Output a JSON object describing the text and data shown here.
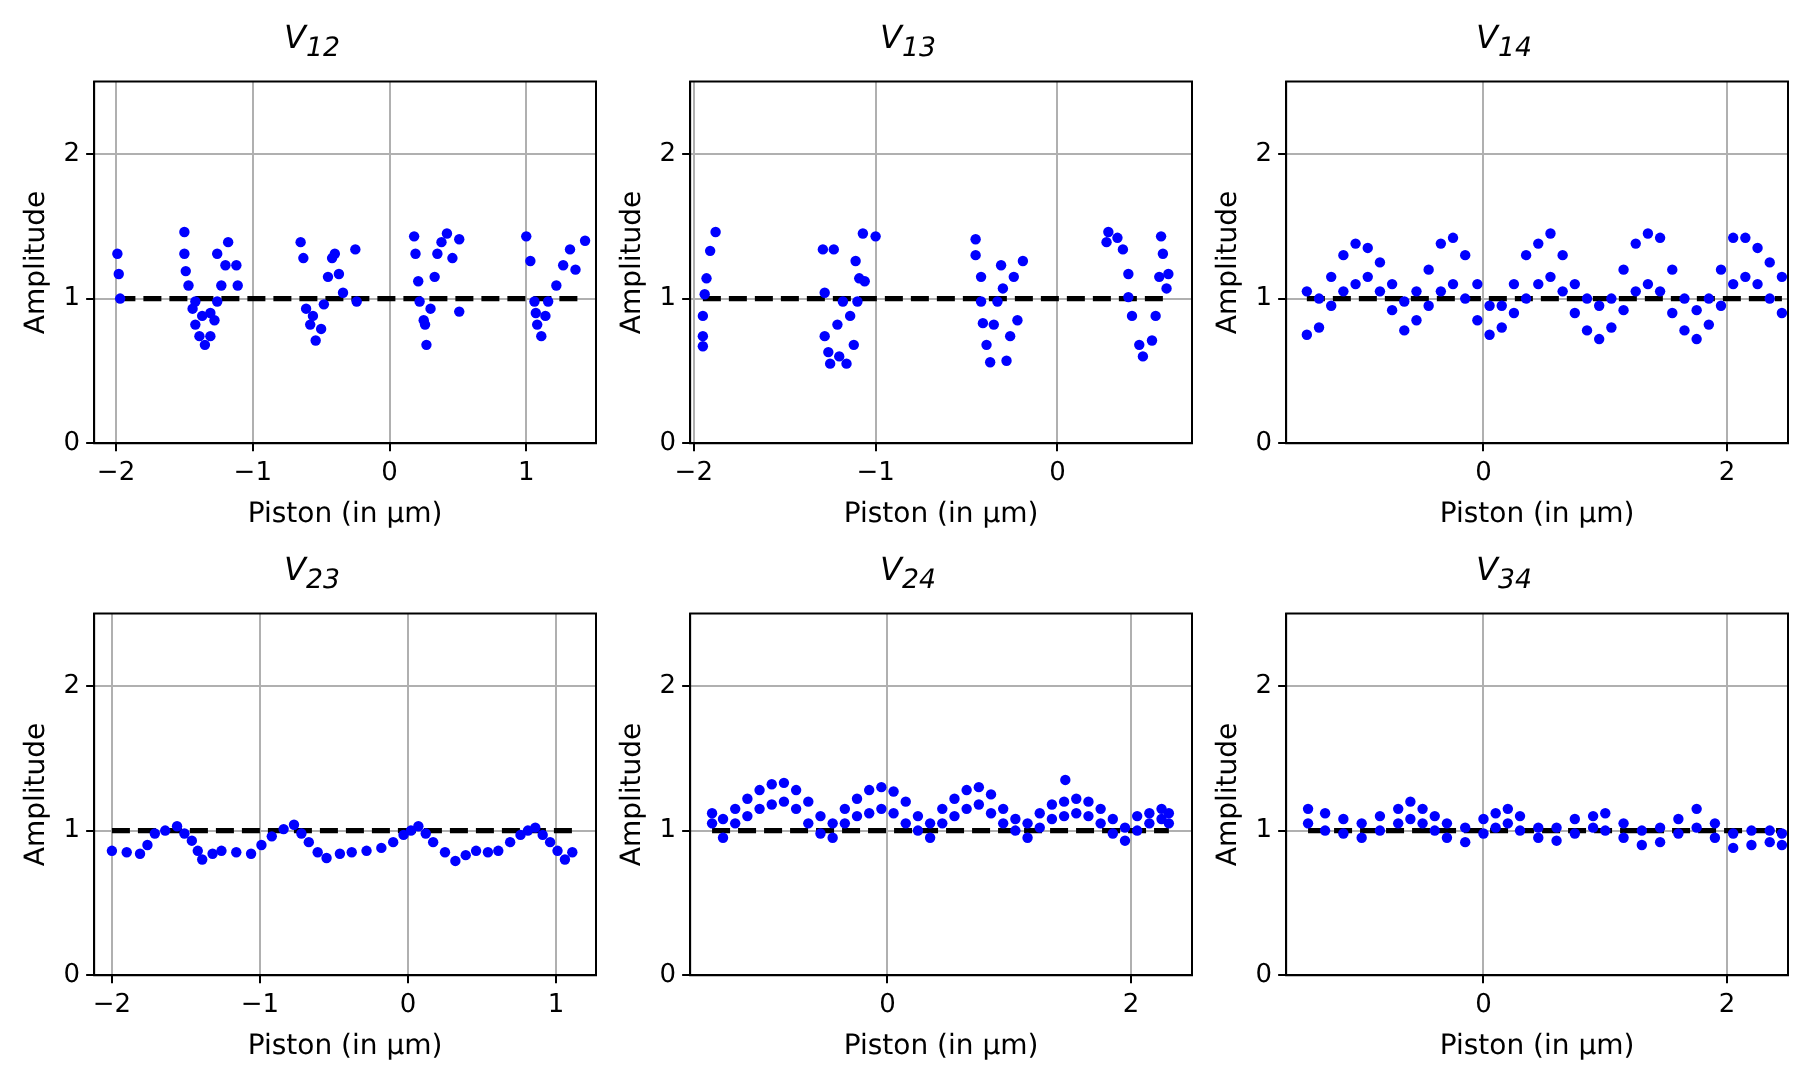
{
  "chart_data": [
    {
      "type": "scatter",
      "title": "V$_{12}$",
      "xlabel": "Piston (in μm)",
      "ylabel": "Amplitude",
      "xlim": [
        -2.16,
        1.51
      ],
      "ylim": [
        0,
        2.5
      ],
      "xticks": [
        -2,
        -1,
        0,
        1
      ],
      "yticks": [
        0,
        1,
        2
      ],
      "grid": true,
      "marker": "circle",
      "ref_lines": [
        {
          "axis": "y",
          "value": 1,
          "color": "#000000",
          "line_style": "dashed"
        }
      ],
      "series": [
        {
          "color": "#0000ff",
          "x": [
            -1.99,
            -1.98,
            -1.97,
            -1.5,
            -1.5,
            -1.49,
            -1.47,
            -1.44,
            -1.42,
            -1.39,
            -1.35,
            -1.31,
            -1.28,
            -1.26,
            -1.23,
            -1.2,
            -1.18,
            -1.12,
            -1.11,
            -1.37,
            -1.31,
            -1.42,
            -1.26,
            -0.65,
            -0.63,
            -0.61,
            -0.58,
            -0.54,
            -0.5,
            -0.48,
            -0.45,
            -0.42,
            -0.4,
            -0.37,
            -0.34,
            -0.25,
            -0.24,
            -0.56,
            0.18,
            0.19,
            0.21,
            0.22,
            0.25,
            0.27,
            0.3,
            0.33,
            0.35,
            0.38,
            0.42,
            0.46,
            0.51,
            0.51,
            0.26,
            1.0,
            1.03,
            1.06,
            1.08,
            1.11,
            1.14,
            1.16,
            1.22,
            1.27,
            1.32,
            1.36,
            1.43,
            1.07
          ],
          "values": [
            1.31,
            1.17,
            1.0,
            1.46,
            1.31,
            1.19,
            1.09,
            0.93,
            0.82,
            0.74,
            0.68,
            0.74,
            0.85,
            0.98,
            1.09,
            1.23,
            1.39,
            1.23,
            1.09,
            0.88,
            0.9,
            0.98,
            1.31,
            1.39,
            1.28,
            0.93,
            0.82,
            0.71,
            0.79,
            0.96,
            1.15,
            1.28,
            1.31,
            1.17,
            1.04,
            1.34,
            0.98,
            0.88,
            1.43,
            1.31,
            1.12,
            0.98,
            0.85,
            0.68,
            0.93,
            1.15,
            1.31,
            1.39,
            1.45,
            1.28,
            1.41,
            0.91,
            0.82,
            1.43,
            1.26,
            0.98,
            0.82,
            0.74,
            0.88,
            0.98,
            1.09,
            1.23,
            1.34,
            1.2,
            1.4,
            0.9
          ]
        }
      ]
    },
    {
      "type": "scatter",
      "title": "V$_{13}$",
      "xlabel": "Piston (in μm)",
      "ylabel": "Amplitude",
      "xlim": [
        -2.02,
        0.74
      ],
      "ylim": [
        0,
        2.5
      ],
      "xticks": [
        -2,
        -1,
        0
      ],
      "yticks": [
        0,
        1,
        2
      ],
      "grid": true,
      "marker": "circle",
      "ref_lines": [
        {
          "axis": "y",
          "value": 1,
          "color": "#000000",
          "line_style": "dashed"
        }
      ],
      "series": [
        {
          "color": "#0000ff",
          "x": [
            -1.88,
            -1.91,
            -1.93,
            -1.94,
            -1.95,
            -1.95,
            -1.95,
            -1.29,
            -1.28,
            -1.28,
            -1.26,
            -1.25,
            -1.23,
            -1.21,
            -1.2,
            -1.18,
            -1.16,
            -1.14,
            -1.12,
            -1.11,
            -1.09,
            -1.07,
            -1.06,
            -1.0,
            -1.1,
            -0.45,
            -0.45,
            -0.42,
            -0.42,
            -0.41,
            -0.39,
            -0.37,
            -0.35,
            -0.33,
            -0.31,
            -0.3,
            -0.28,
            -0.26,
            -0.24,
            -0.22,
            -0.19,
            0.28,
            0.27,
            0.33,
            0.36,
            0.39,
            0.39,
            0.41,
            0.45,
            0.47,
            0.52,
            0.54,
            0.56,
            0.57,
            0.58,
            0.6,
            0.61
          ],
          "values": [
            1.46,
            1.33,
            1.14,
            1.03,
            0.88,
            0.74,
            0.67,
            1.34,
            1.04,
            0.74,
            0.63,
            0.55,
            1.34,
            0.82,
            0.6,
            0.98,
            0.55,
            0.88,
            0.68,
            1.26,
            1.14,
            1.45,
            1.12,
            1.43,
            0.98,
            1.41,
            1.3,
            1.15,
            0.98,
            0.83,
            0.68,
            0.56,
            0.82,
            0.98,
            1.23,
            1.07,
            0.57,
            0.74,
            1.15,
            0.85,
            1.26,
            1.46,
            1.39,
            1.42,
            1.34,
            1.17,
            1.01,
            0.88,
            0.68,
            0.6,
            0.71,
            0.88,
            1.15,
            1.43,
            1.31,
            1.07,
            1.17
          ]
        }
      ]
    },
    {
      "type": "scatter",
      "title": "V$_{14}$",
      "xlabel": "Piston (in μm)",
      "ylabel": "Amplitude",
      "xlim": [
        -1.62,
        2.5
      ],
      "ylim": [
        0,
        2.5
      ],
      "xticks": [
        0,
        2
      ],
      "yticks": [
        0,
        1,
        2
      ],
      "grid": true,
      "marker": "circle",
      "ref_lines": [
        {
          "axis": "y",
          "value": 1,
          "color": "#000000",
          "line_style": "dashed"
        }
      ],
      "series": [
        {
          "color": "#0000ff",
          "x": [
            -1.45,
            -1.45,
            -1.35,
            -1.35,
            -1.25,
            -1.25,
            -1.15,
            -1.15,
            -1.05,
            -1.05,
            -0.95,
            -0.95,
            -0.85,
            -0.85,
            -0.75,
            -0.75,
            -0.65,
            -0.65,
            -0.55,
            -0.55,
            -0.45,
            -0.45,
            -0.35,
            -0.35,
            -0.25,
            -0.25,
            -0.15,
            -0.15,
            -0.05,
            -0.05,
            0.05,
            0.05,
            0.15,
            0.15,
            0.25,
            0.25,
            0.35,
            0.35,
            0.45,
            0.45,
            0.55,
            0.55,
            0.65,
            0.65,
            0.75,
            0.75,
            0.85,
            0.85,
            0.95,
            0.95,
            1.05,
            1.05,
            1.15,
            1.15,
            1.25,
            1.25,
            1.35,
            1.35,
            1.45,
            1.45,
            1.55,
            1.55,
            1.65,
            1.65,
            1.75,
            1.75,
            1.85,
            1.85,
            1.95,
            1.95,
            2.05,
            2.05,
            2.15,
            2.15,
            2.25,
            2.25,
            2.35,
            2.35,
            2.45,
            2.45
          ],
          "values": [
            0.75,
            1.05,
            0.8,
            1.0,
            0.95,
            1.15,
            1.05,
            1.3,
            1.1,
            1.38,
            1.15,
            1.35,
            1.05,
            1.25,
            0.92,
            1.1,
            0.78,
            0.98,
            0.85,
            1.05,
            0.95,
            1.2,
            1.05,
            1.38,
            1.1,
            1.42,
            1.0,
            1.3,
            0.85,
            1.1,
            0.75,
            0.95,
            0.8,
            0.95,
            0.9,
            1.1,
            1.0,
            1.3,
            1.1,
            1.38,
            1.15,
            1.45,
            1.05,
            1.3,
            0.9,
            1.1,
            0.78,
            1.0,
            0.72,
            0.95,
            0.8,
            1.0,
            0.92,
            1.2,
            1.05,
            1.38,
            1.1,
            1.45,
            1.05,
            1.42,
            0.9,
            1.2,
            0.78,
            1.0,
            0.72,
            0.92,
            0.82,
            1.0,
            0.95,
            1.2,
            1.1,
            1.42,
            1.15,
            1.42,
            1.1,
            1.35,
            1.0,
            1.25,
            0.9,
            1.15
          ]
        }
      ]
    },
    {
      "type": "scatter",
      "title": "V$_{23}$",
      "xlabel": "Piston (in μm)",
      "ylabel": "Amplitude",
      "xlim": [
        -2.12,
        1.27
      ],
      "ylim": [
        0,
        2.5
      ],
      "xticks": [
        -2,
        -1,
        0,
        1
      ],
      "yticks": [
        0,
        1,
        2
      ],
      "grid": true,
      "marker": "circle",
      "ref_lines": [
        {
          "axis": "y",
          "value": 1,
          "color": "#000000",
          "line_style": "dashed"
        }
      ],
      "series": [
        {
          "color": "#0000ff",
          "x": [
            -2.0,
            -1.9,
            -1.81,
            -1.76,
            -1.71,
            -1.64,
            -1.56,
            -1.51,
            -1.46,
            -1.42,
            -1.39,
            -1.32,
            -1.26,
            -1.16,
            -1.06,
            -0.99,
            -0.92,
            -0.84,
            -0.77,
            -0.72,
            -0.67,
            -0.61,
            -0.55,
            -0.46,
            -0.38,
            -0.28,
            -0.18,
            -0.1,
            -0.03,
            0.02,
            0.07,
            0.12,
            0.17,
            0.25,
            0.32,
            0.39,
            0.46,
            0.54,
            0.61,
            0.69,
            0.76,
            0.81,
            0.86,
            0.91,
            0.96,
            1.01,
            1.06,
            1.11
          ],
          "values": [
            0.86,
            0.85,
            0.84,
            0.9,
            0.98,
            1.0,
            1.03,
            0.98,
            0.93,
            0.86,
            0.8,
            0.84,
            0.86,
            0.85,
            0.84,
            0.9,
            0.96,
            1.01,
            1.04,
            0.98,
            0.92,
            0.85,
            0.81,
            0.84,
            0.85,
            0.86,
            0.88,
            0.92,
            0.97,
            1.0,
            1.03,
            0.98,
            0.92,
            0.85,
            0.79,
            0.83,
            0.86,
            0.85,
            0.86,
            0.92,
            0.97,
            1.0,
            1.02,
            0.97,
            0.92,
            0.86,
            0.8,
            0.85
          ]
        }
      ]
    },
    {
      "type": "scatter",
      "title": "V$_{24}$",
      "xlabel": "Piston (in μm)",
      "ylabel": "Amplitude",
      "xlim": [
        -1.62,
        2.5
      ],
      "ylim": [
        0,
        2.5
      ],
      "xticks": [
        0,
        2
      ],
      "yticks": [
        0,
        1,
        2
      ],
      "grid": true,
      "marker": "circle",
      "ref_lines": [
        {
          "axis": "y",
          "value": 1,
          "color": "#000000",
          "line_style": "dashed"
        }
      ],
      "series": [
        {
          "color": "#0000ff",
          "x": [
            -1.44,
            -1.44,
            -1.35,
            -1.35,
            -1.25,
            -1.25,
            -1.15,
            -1.15,
            -1.05,
            -1.05,
            -0.95,
            -0.95,
            -0.85,
            -0.85,
            -0.75,
            -0.75,
            -0.65,
            -0.65,
            -0.55,
            -0.55,
            -0.45,
            -0.45,
            -0.35,
            -0.35,
            -0.25,
            -0.25,
            -0.15,
            -0.15,
            -0.05,
            -0.05,
            0.05,
            0.05,
            0.15,
            0.15,
            0.25,
            0.25,
            0.35,
            0.35,
            0.45,
            0.45,
            0.55,
            0.55,
            0.65,
            0.65,
            0.75,
            0.75,
            0.85,
            0.85,
            0.95,
            0.95,
            1.05,
            1.05,
            1.15,
            1.15,
            1.25,
            1.25,
            1.35,
            1.35,
            1.45,
            1.45,
            1.46,
            1.55,
            1.55,
            1.65,
            1.65,
            1.75,
            1.75,
            1.85,
            1.85,
            1.95,
            1.95,
            2.05,
            2.05,
            2.15,
            2.15,
            2.25,
            2.25,
            2.31,
            2.31
          ],
          "values": [
            1.05,
            1.12,
            0.95,
            1.08,
            1.05,
            1.15,
            1.1,
            1.22,
            1.15,
            1.28,
            1.18,
            1.32,
            1.2,
            1.33,
            1.15,
            1.28,
            1.05,
            1.2,
            0.98,
            1.1,
            0.95,
            1.05,
            1.05,
            1.15,
            1.1,
            1.22,
            1.12,
            1.28,
            1.15,
            1.3,
            1.12,
            1.27,
            1.05,
            1.2,
            1.0,
            1.1,
            0.95,
            1.05,
            1.05,
            1.15,
            1.1,
            1.22,
            1.15,
            1.28,
            1.18,
            1.3,
            1.12,
            1.25,
            1.05,
            1.15,
            1.0,
            1.08,
            0.95,
            1.05,
            1.02,
            1.12,
            1.08,
            1.18,
            1.1,
            1.2,
            1.35,
            1.12,
            1.22,
            1.1,
            1.2,
            1.05,
            1.15,
            0.98,
            1.08,
            0.93,
            1.02,
            1.0,
            1.1,
            1.05,
            1.12,
            1.08,
            1.15,
            1.05,
            1.12
          ]
        }
      ]
    },
    {
      "type": "scatter",
      "title": "V$_{34}$",
      "xlabel": "Piston (in μm)",
      "ylabel": "Amplitude",
      "xlim": [
        -1.62,
        2.5
      ],
      "ylim": [
        0,
        2.5
      ],
      "xticks": [
        0,
        2
      ],
      "yticks": [
        0,
        1,
        2
      ],
      "grid": true,
      "marker": "circle",
      "ref_lines": [
        {
          "axis": "y",
          "value": 1,
          "color": "#000000",
          "line_style": "dashed"
        }
      ],
      "series": [
        {
          "color": "#0000ff",
          "x": [
            -1.44,
            -1.44,
            -1.3,
            -1.3,
            -1.15,
            -1.15,
            -1.0,
            -1.0,
            -0.85,
            -0.85,
            -0.7,
            -0.7,
            -0.6,
            -0.6,
            -0.5,
            -0.5,
            -0.4,
            -0.4,
            -0.3,
            -0.3,
            -0.15,
            -0.15,
            0.0,
            0.0,
            0.1,
            0.1,
            0.2,
            0.2,
            0.3,
            0.3,
            0.45,
            0.45,
            0.6,
            0.6,
            0.75,
            0.75,
            0.9,
            0.9,
            1.0,
            1.0,
            1.15,
            1.15,
            1.3,
            1.3,
            1.45,
            1.45,
            1.6,
            1.6,
            1.75,
            1.75,
            1.9,
            1.9,
            2.05,
            2.05,
            2.2,
            2.2,
            2.35,
            2.35,
            2.45,
            2.45
          ],
          "values": [
            1.05,
            1.15,
            1.0,
            1.12,
            0.98,
            1.08,
            0.95,
            1.05,
            1.0,
            1.1,
            1.05,
            1.15,
            1.08,
            1.2,
            1.05,
            1.15,
            1.0,
            1.1,
            0.95,
            1.05,
            0.92,
            1.02,
            0.98,
            1.08,
            1.02,
            1.12,
            1.05,
            1.15,
            1.0,
            1.1,
            0.95,
            1.02,
            0.93,
            1.02,
            0.98,
            1.08,
            1.02,
            1.1,
            1.0,
            1.12,
            0.95,
            1.05,
            0.9,
            1.0,
            0.92,
            1.02,
            0.98,
            1.08,
            1.02,
            1.15,
            0.95,
            1.05,
            0.88,
            0.98,
            0.9,
            1.0,
            0.92,
            1.0,
            0.9,
            0.98
          ]
        }
      ]
    }
  ]
}
